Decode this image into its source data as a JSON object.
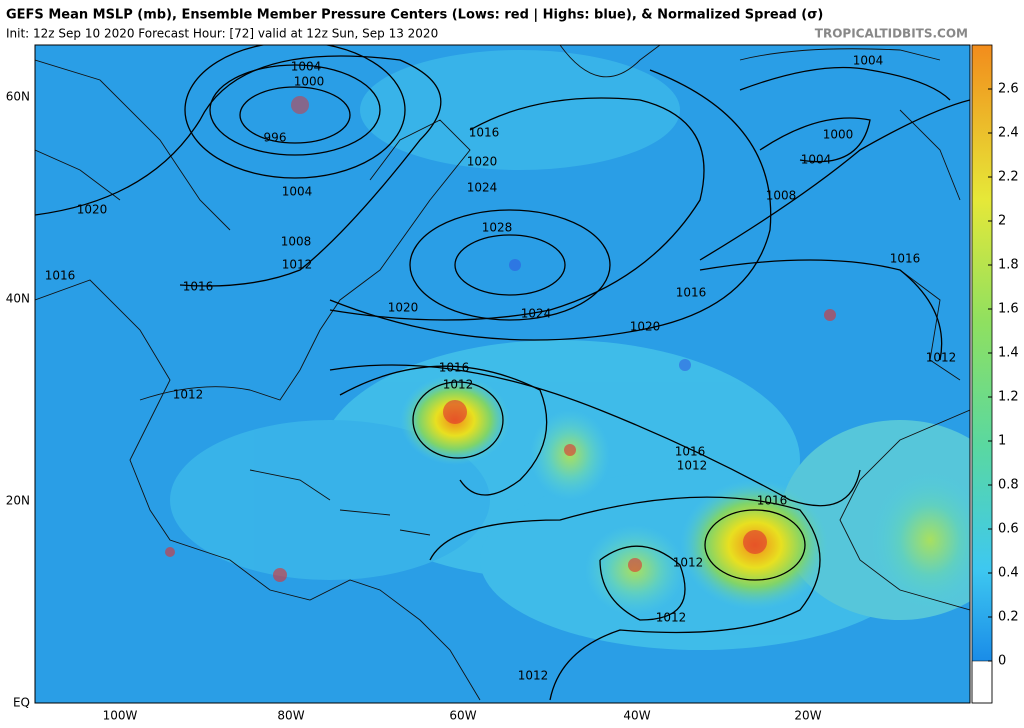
{
  "header": {
    "title": "GEFS Mean MSLP (mb), Ensemble Member Pressure Centers (Lows: red | Highs: blue), & Normalized Spread (σ)",
    "subtitle": "Init: 12z Sep 10 2020   Forecast Hour: [72]   valid at 12z Sun, Sep 13 2020",
    "site": "TROPICALTIDBITS.COM"
  },
  "latitude_labels": [
    "60N",
    "40N",
    "20N",
    "EQ"
  ],
  "longitude_labels": [
    "100W",
    "80W",
    "60W",
    "40W",
    "20W"
  ],
  "isobar_labels": [
    "1004",
    "1000",
    "996",
    "1004",
    "1008",
    "1012",
    "1016",
    "1020",
    "1016",
    "1012",
    "1020",
    "1024",
    "1028",
    "1016",
    "1020",
    "1024",
    "1016",
    "1012",
    "1012",
    "1020",
    "1016",
    "1012",
    "1012",
    "1016",
    "1012",
    "1004",
    "1000",
    "1004",
    "1008",
    "1016",
    "1012",
    "1016"
  ],
  "colorbar": {
    "ticks": [
      0,
      0.2,
      0.4,
      0.6,
      0.8,
      1,
      1.2,
      1.4,
      1.6,
      1.8,
      2,
      2.2,
      2.4,
      2.6
    ],
    "range": [
      0,
      2.6
    ]
  }
}
